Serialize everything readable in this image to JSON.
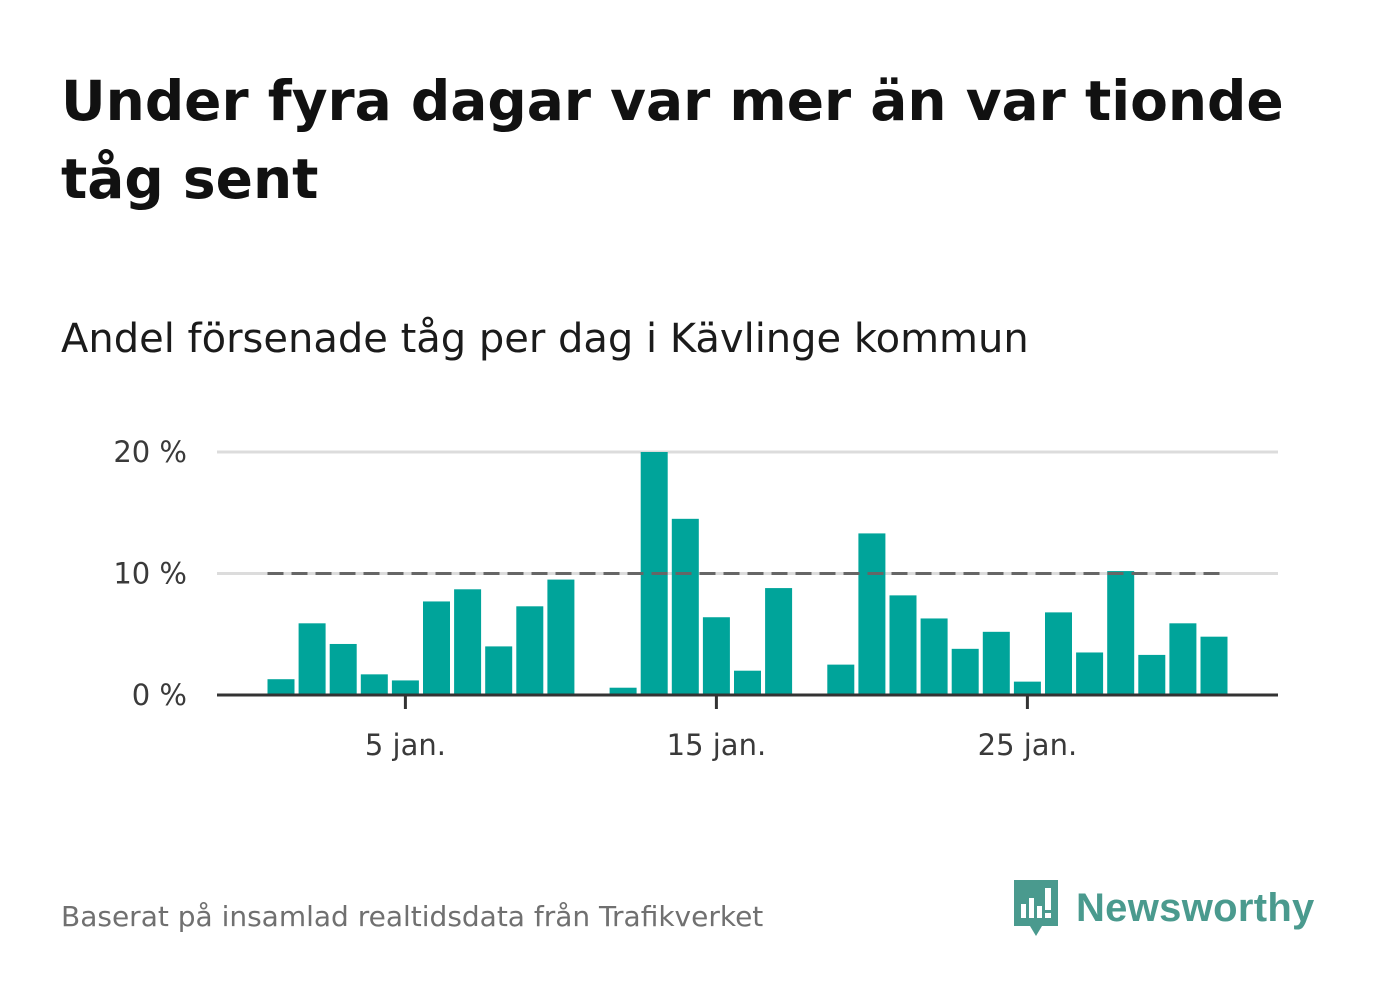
{
  "title": "Under fyra dagar var mer än var tionde tåg sent",
  "subtitle": "Andel försenade tåg per dag i Kävlinge kommun",
  "footer": "Baserat på insamlad realtidsdata från Trafikverket",
  "brand": {
    "name": "Newsworthy",
    "icon": "newsworthy-logo-icon",
    "color": "#4a9a8e"
  },
  "colors": {
    "bar": "#00a49a",
    "reference_line": "#666666",
    "grid": "#dcdcdc",
    "axis": "#333333"
  },
  "chart_data": {
    "type": "bar",
    "x": [
      1,
      2,
      3,
      4,
      5,
      6,
      7,
      8,
      9,
      10,
      11,
      12,
      13,
      14,
      15,
      16,
      17,
      18,
      19,
      20,
      21,
      22,
      23,
      24,
      25,
      26,
      27,
      28,
      29,
      30,
      31
    ],
    "values": [
      1.3,
      5.9,
      4.2,
      1.7,
      1.2,
      7.7,
      8.7,
      4.0,
      7.3,
      9.5,
      null,
      0.6,
      20.0,
      14.5,
      6.4,
      2.0,
      8.8,
      null,
      2.5,
      13.3,
      8.2,
      6.3,
      3.8,
      5.2,
      1.1,
      6.8,
      3.5,
      10.2,
      3.3,
      5.9,
      4.8
    ],
    "x_ticks": [
      {
        "value": 5,
        "label": "5 jan."
      },
      {
        "value": 15,
        "label": "15 jan."
      },
      {
        "value": 25,
        "label": "25 jan."
      }
    ],
    "y_ticks": [
      {
        "value": 0,
        "label": "0 %"
      },
      {
        "value": 10,
        "label": "10 %"
      },
      {
        "value": 20,
        "label": "20 %"
      }
    ],
    "ylim": [
      0,
      20
    ],
    "reference_line": 10,
    "grid": true,
    "xlabel": "",
    "ylabel": ""
  }
}
